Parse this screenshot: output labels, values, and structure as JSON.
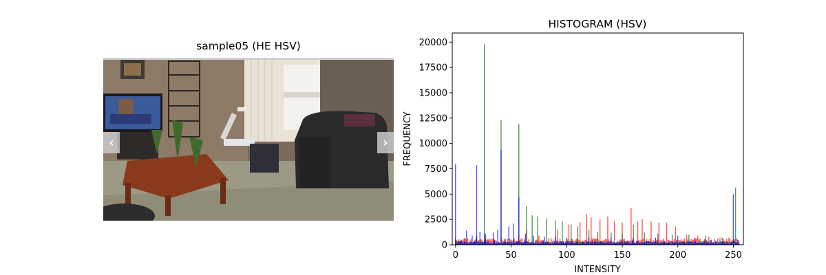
{
  "image_panel": {
    "title": "sample05 (HE HSV)",
    "prev_arrow": "‹",
    "next_arrow": "›",
    "icons": {
      "prev": "chevron-left-icon",
      "next": "chevron-right-icon"
    }
  },
  "chart_data": {
    "type": "bar",
    "title": "HISTOGRAM (HSV)",
    "xlabel": "INTENSITY",
    "ylabel": "FREQUENCY",
    "xlim": [
      -3,
      259
    ],
    "ylim": [
      0,
      20900
    ],
    "xticks": [
      0,
      50,
      100,
      150,
      200,
      250
    ],
    "yticks": [
      0,
      2500,
      5000,
      7500,
      10000,
      12500,
      15000,
      17500,
      20000
    ],
    "grid": false,
    "series": [
      {
        "color": "#ff0000",
        "peaks": [
          {
            "x": 0,
            "y": 700
          },
          {
            "x": 19,
            "y": 700
          },
          {
            "x": 26,
            "y": 900
          },
          {
            "x": 41,
            "y": 800
          },
          {
            "x": 57,
            "y": 900
          },
          {
            "x": 64,
            "y": 1500
          },
          {
            "x": 75,
            "y": 900
          },
          {
            "x": 92,
            "y": 1500
          },
          {
            "x": 102,
            "y": 2000
          },
          {
            "x": 112,
            "y": 2200
          },
          {
            "x": 118,
            "y": 3050
          },
          {
            "x": 122,
            "y": 2700
          },
          {
            "x": 130,
            "y": 2500
          },
          {
            "x": 137,
            "y": 2800
          },
          {
            "x": 143,
            "y": 2300
          },
          {
            "x": 150,
            "y": 2200
          },
          {
            "x": 158,
            "y": 3650
          },
          {
            "x": 164,
            "y": 2300
          },
          {
            "x": 168,
            "y": 2500
          },
          {
            "x": 176,
            "y": 2300
          },
          {
            "x": 183,
            "y": 2200
          },
          {
            "x": 190,
            "y": 2200
          },
          {
            "x": 198,
            "y": 1800
          },
          {
            "x": 208,
            "y": 1000
          },
          {
            "x": 218,
            "y": 900
          },
          {
            "x": 228,
            "y": 800
          },
          {
            "x": 238,
            "y": 700
          },
          {
            "x": 246,
            "y": 700
          }
        ],
        "base": 500
      },
      {
        "color": "#006400",
        "peaks": [
          {
            "x": 0,
            "y": 400
          },
          {
            "x": 19,
            "y": 900
          },
          {
            "x": 26,
            "y": 19800
          },
          {
            "x": 41,
            "y": 12300
          },
          {
            "x": 57,
            "y": 11900
          },
          {
            "x": 64,
            "y": 3800
          },
          {
            "x": 69,
            "y": 2900
          },
          {
            "x": 74,
            "y": 2800
          },
          {
            "x": 82,
            "y": 2600
          },
          {
            "x": 90,
            "y": 2400
          },
          {
            "x": 96,
            "y": 2300
          },
          {
            "x": 104,
            "y": 2000
          },
          {
            "x": 110,
            "y": 1800
          },
          {
            "x": 120,
            "y": 1500
          },
          {
            "x": 128,
            "y": 1300
          },
          {
            "x": 140,
            "y": 1200
          },
          {
            "x": 150,
            "y": 1100
          },
          {
            "x": 160,
            "y": 2000
          },
          {
            "x": 170,
            "y": 1200
          },
          {
            "x": 182,
            "y": 1100
          },
          {
            "x": 195,
            "y": 1000
          },
          {
            "x": 210,
            "y": 1000
          },
          {
            "x": 225,
            "y": 900
          },
          {
            "x": 240,
            "y": 700
          },
          {
            "x": 252,
            "y": 5650
          }
        ],
        "base": 300
      },
      {
        "color": "#0000ff",
        "peaks": [
          {
            "x": 0,
            "y": 7950
          },
          {
            "x": 5,
            "y": 500
          },
          {
            "x": 10,
            "y": 1400
          },
          {
            "x": 15,
            "y": 900
          },
          {
            "x": 19,
            "y": 7850
          },
          {
            "x": 22,
            "y": 1300
          },
          {
            "x": 27,
            "y": 1100
          },
          {
            "x": 34,
            "y": 1200
          },
          {
            "x": 38,
            "y": 1500
          },
          {
            "x": 41,
            "y": 9400
          },
          {
            "x": 48,
            "y": 1800
          },
          {
            "x": 52,
            "y": 2100
          },
          {
            "x": 57,
            "y": 4700
          },
          {
            "x": 63,
            "y": 1100
          },
          {
            "x": 70,
            "y": 900
          },
          {
            "x": 80,
            "y": 800
          },
          {
            "x": 90,
            "y": 800
          },
          {
            "x": 100,
            "y": 700
          },
          {
            "x": 120,
            "y": 700
          },
          {
            "x": 140,
            "y": 700
          },
          {
            "x": 160,
            "y": 700
          },
          {
            "x": 180,
            "y": 700
          },
          {
            "x": 200,
            "y": 900
          },
          {
            "x": 215,
            "y": 700
          },
          {
            "x": 230,
            "y": 500
          },
          {
            "x": 250,
            "y": 5000
          },
          {
            "x": 254,
            "y": 500
          }
        ],
        "base": 300
      }
    ]
  }
}
